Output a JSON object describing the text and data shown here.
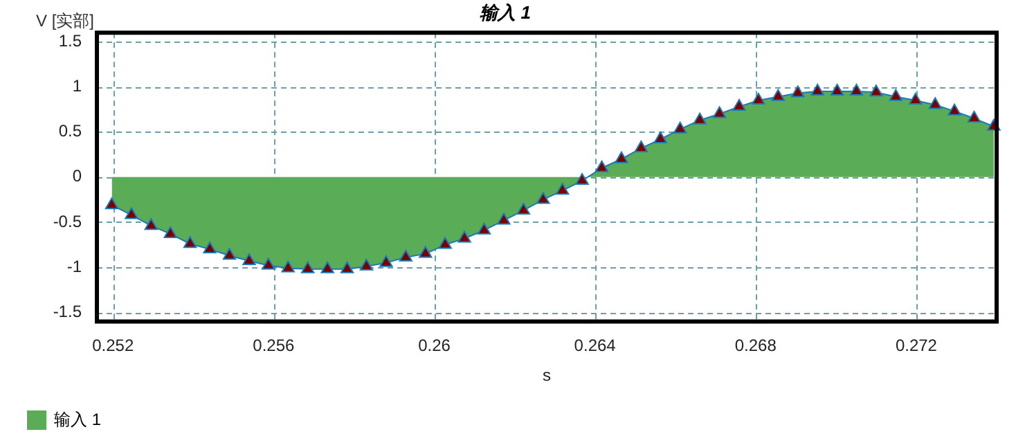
{
  "chart_data": {
    "type": "area",
    "title": "输入 1",
    "xlabel": "s",
    "ylabel": "V [实部]",
    "x": [
      0.25197,
      0.25246,
      0.25295,
      0.25343,
      0.25392,
      0.25441,
      0.2549,
      0.25539,
      0.25587,
      0.25636,
      0.25685,
      0.25734,
      0.25783,
      0.25831,
      0.2588,
      0.25929,
      0.25978,
      0.26027,
      0.26075,
      0.26124,
      0.26173,
      0.26222,
      0.26271,
      0.26319,
      0.26368,
      0.26417,
      0.26466,
      0.26515,
      0.26563,
      0.26612,
      0.26661,
      0.2671,
      0.26759,
      0.26807,
      0.26856,
      0.26905,
      0.26954,
      0.27003,
      0.27051,
      0.271,
      0.27149,
      0.27198,
      0.27247,
      0.27295,
      0.27344,
      0.27393
    ],
    "series": [
      {
        "name": "输入 1",
        "color": "#5aac57",
        "values": [
          -0.31,
          -0.42,
          -0.54,
          -0.63,
          -0.74,
          -0.8,
          -0.87,
          -0.93,
          -0.98,
          -1.01,
          -1.02,
          -1.02,
          -1.02,
          -0.99,
          -0.95,
          -0.89,
          -0.85,
          -0.75,
          -0.68,
          -0.59,
          -0.48,
          -0.37,
          -0.25,
          -0.15,
          -0.04,
          0.1,
          0.2,
          0.32,
          0.42,
          0.53,
          0.63,
          0.7,
          0.78,
          0.85,
          0.89,
          0.93,
          0.95,
          0.95,
          0.95,
          0.94,
          0.89,
          0.85,
          0.8,
          0.73,
          0.65,
          0.56
        ]
      }
    ],
    "xlim": [
      0.2516,
      0.274
    ],
    "xticks": [
      0.252,
      0.256,
      0.26,
      0.264,
      0.268,
      0.272
    ],
    "ylim": [
      -1.6,
      1.6
    ],
    "yticks": [
      -1.5,
      -1,
      -0.5,
      0,
      0.5,
      1,
      1.5
    ],
    "grid": true,
    "legend": "bottom left",
    "marker": "triangle"
  }
}
